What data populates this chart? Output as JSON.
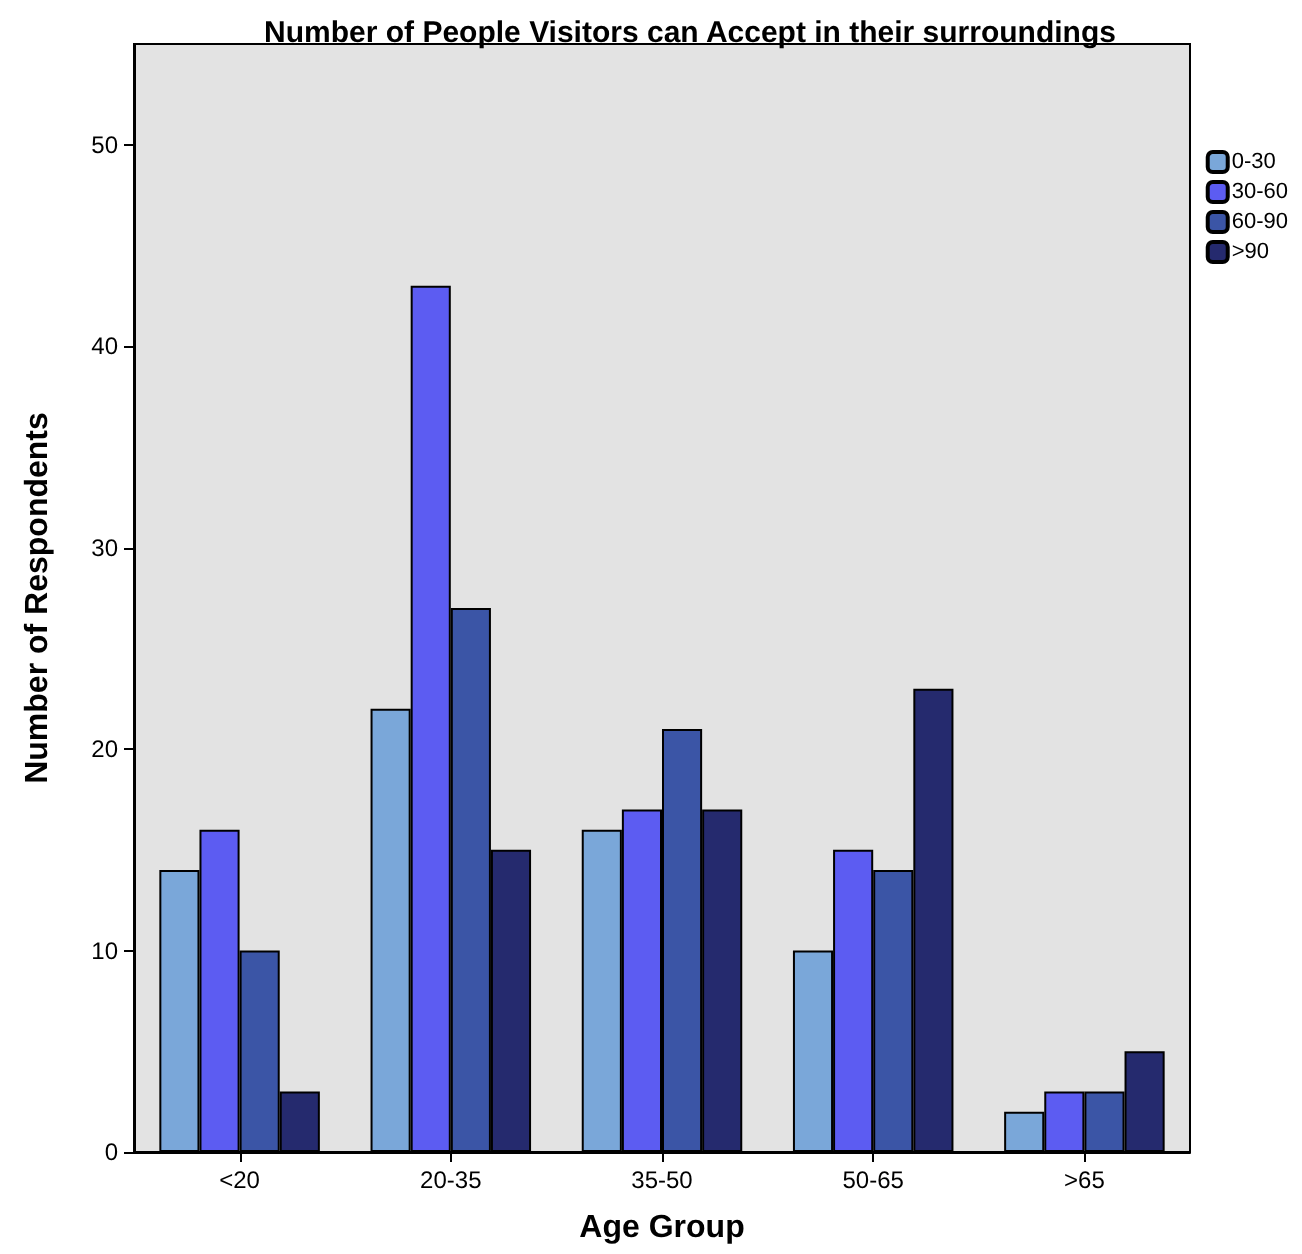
{
  "chart_data": {
    "type": "bar",
    "title": "Number of People Visitors can Accept in their surroundings",
    "xlabel": "Age Group",
    "ylabel": "Number of Respondents",
    "categories": [
      "<20",
      "20-35",
      "35-50",
      "50-65",
      ">65"
    ],
    "series": [
      {
        "name": "0-30",
        "color": "#7aa7d9",
        "values": [
          14,
          22,
          16,
          10,
          2
        ]
      },
      {
        "name": "30-60",
        "color": "#5c5cf2",
        "values": [
          16,
          43,
          17,
          15,
          3
        ]
      },
      {
        "name": "60-90",
        "color": "#3b55a6",
        "values": [
          10,
          27,
          21,
          14,
          3
        ]
      },
      {
        "name": ">90",
        "color": "#252a6e",
        "values": [
          3,
          15,
          17,
          23,
          5
        ]
      }
    ],
    "ylim": [
      0,
      55
    ],
    "yticks": [
      0,
      10,
      20,
      30,
      40,
      50
    ],
    "grid": false,
    "legend": "top right"
  }
}
